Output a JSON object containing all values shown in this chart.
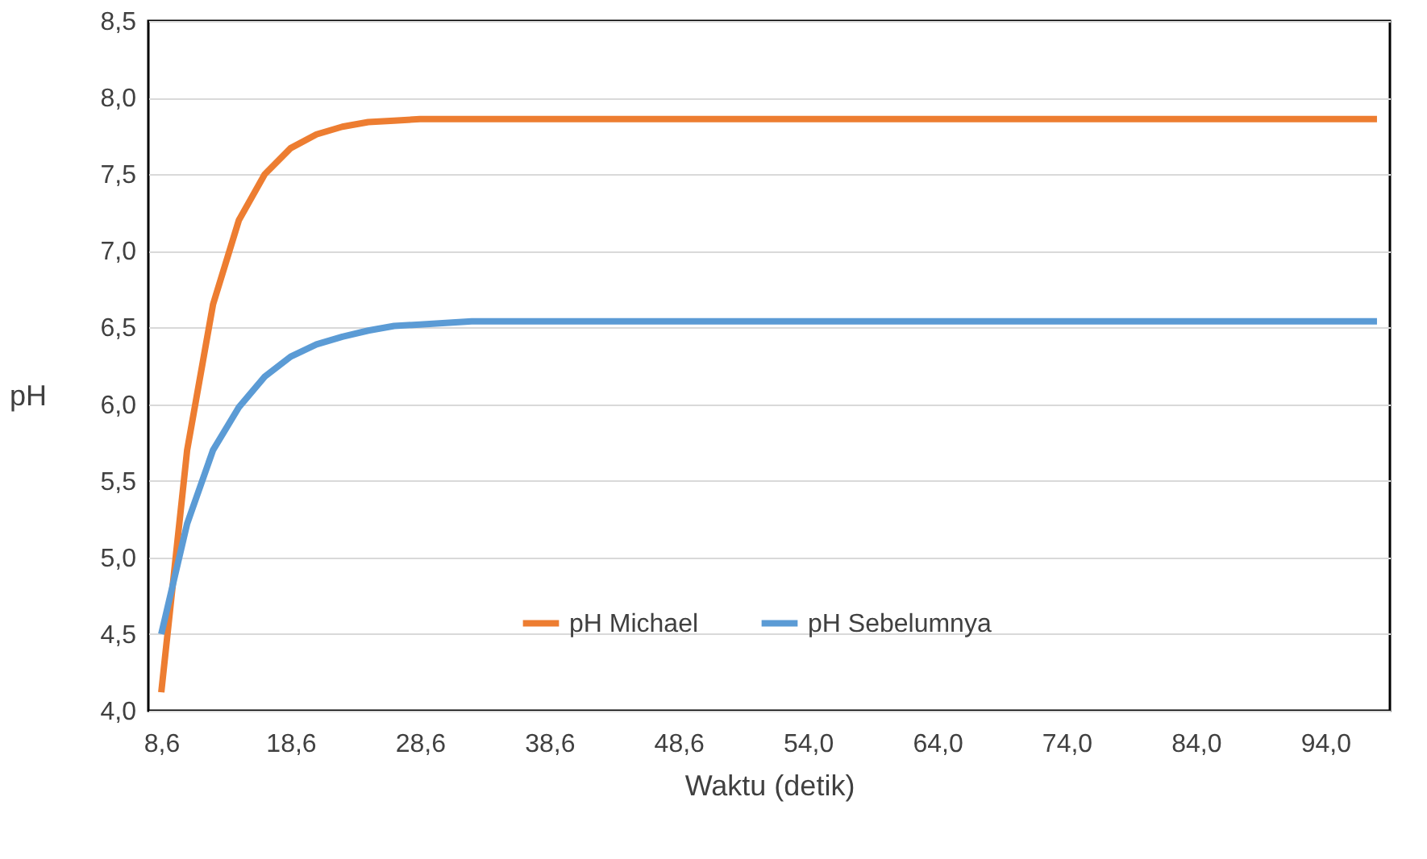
{
  "chart_data": {
    "type": "line",
    "xlabel": "Waktu (detik)",
    "ylabel": "pH",
    "categories": [
      "8,6",
      null,
      null,
      null,
      null,
      "18,6",
      null,
      null,
      null,
      null,
      "28,6",
      null,
      null,
      null,
      null,
      "38,6",
      null,
      null,
      null,
      null,
      "48,6",
      null,
      null,
      null,
      null,
      "54,0",
      null,
      null,
      null,
      null,
      "64,0",
      null,
      null,
      null,
      null,
      "74,0",
      null,
      null,
      null,
      null,
      "84,0",
      null,
      null,
      null,
      null,
      "94,0",
      null,
      null
    ],
    "series": [
      {
        "name": "pH Michael",
        "color": "#ed7d31",
        "values": [
          4.12,
          5.7,
          6.65,
          7.2,
          7.5,
          7.67,
          7.76,
          7.81,
          7.84,
          7.85,
          7.86,
          7.86,
          7.86,
          7.86,
          7.86,
          7.86,
          7.86,
          7.86,
          7.86,
          7.86,
          7.86,
          7.86,
          7.86,
          7.86,
          7.86,
          7.86,
          7.86,
          7.86,
          7.86,
          7.86,
          7.86,
          7.86,
          7.86,
          7.86,
          7.86,
          7.86,
          7.86,
          7.86,
          7.86,
          7.86,
          7.86,
          7.86,
          7.86,
          7.86,
          7.86,
          7.86,
          7.86,
          7.86
        ]
      },
      {
        "name": "pH Sebelumnya",
        "color": "#5b9bd5",
        "values": [
          4.5,
          5.22,
          5.7,
          5.98,
          6.18,
          6.31,
          6.39,
          6.44,
          6.48,
          6.51,
          6.52,
          6.53,
          6.54,
          6.54,
          6.54,
          6.54,
          6.54,
          6.54,
          6.54,
          6.54,
          6.54,
          6.54,
          6.54,
          6.54,
          6.54,
          6.54,
          6.54,
          6.54,
          6.54,
          6.54,
          6.54,
          6.54,
          6.54,
          6.54,
          6.54,
          6.54,
          6.54,
          6.54,
          6.54,
          6.54,
          6.54,
          6.54,
          6.54,
          6.54,
          6.54,
          6.54,
          6.54,
          6.54
        ]
      }
    ],
    "ylim": [
      4.0,
      8.5
    ],
    "yticks": [
      {
        "value": 4.0,
        "label": "4,0"
      },
      {
        "value": 4.5,
        "label": "4,5"
      },
      {
        "value": 5.0,
        "label": "5,0"
      },
      {
        "value": 5.5,
        "label": "5,5"
      },
      {
        "value": 6.0,
        "label": "6,0"
      },
      {
        "value": 6.5,
        "label": "6,5"
      },
      {
        "value": 7.0,
        "label": "7,0"
      },
      {
        "value": 7.5,
        "label": "7,5"
      },
      {
        "value": 8.0,
        "label": "8,0"
      },
      {
        "value": 8.5,
        "label": "8,5"
      }
    ],
    "grid": "y",
    "legend": "bottom",
    "marker": "none",
    "line_style": "solid"
  }
}
